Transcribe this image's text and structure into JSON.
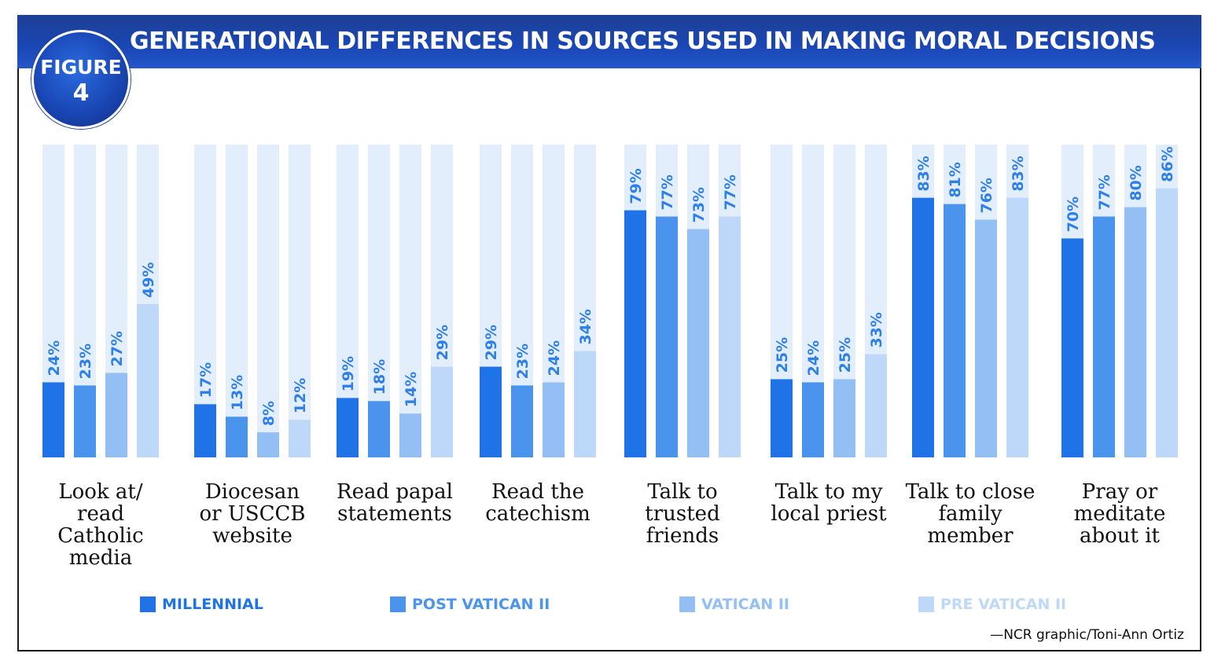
{
  "figure_badge": {
    "line1": "FIGURE",
    "line2": "4"
  },
  "chart_data": {
    "type": "bar",
    "title": "GENERATIONAL DIFFERENCES IN SOURCES USED IN MAKING MORAL DECISIONS",
    "categories": [
      [
        "Look at/",
        "read",
        "Catholic",
        "media"
      ],
      [
        "Diocesan",
        "or USCCB",
        "website"
      ],
      [
        "Read papal",
        "statements"
      ],
      [
        "Read the",
        "catechism"
      ],
      [
        "Talk to",
        "trusted",
        "friends"
      ],
      [
        "Talk to my",
        "local priest"
      ],
      [
        "Talk to close",
        "family",
        "member"
      ],
      [
        "Pray or",
        "meditate",
        "about it"
      ]
    ],
    "series": [
      {
        "name": "MILLENNIAL",
        "color": "#1f73e6",
        "values": [
          24,
          17,
          19,
          29,
          79,
          25,
          83,
          70
        ]
      },
      {
        "name": "POST VATICAN II",
        "color": "#4b94ee",
        "values": [
          23,
          13,
          18,
          23,
          77,
          24,
          81,
          77
        ]
      },
      {
        "name": "VATICAN II",
        "color": "#93bff5",
        "values": [
          27,
          8,
          14,
          24,
          73,
          25,
          76,
          80
        ]
      },
      {
        "name": "PRE VATICAN II",
        "color": "#bed8f9",
        "values": [
          49,
          12,
          29,
          34,
          77,
          33,
          83,
          86
        ]
      }
    ],
    "ylim": [
      0,
      100
    ],
    "value_suffix": "%",
    "track_color": "#e3eefc",
    "grid": false,
    "legend_position": "bottom"
  },
  "credit": "—NCR graphic/Toni-Ann Ortiz"
}
